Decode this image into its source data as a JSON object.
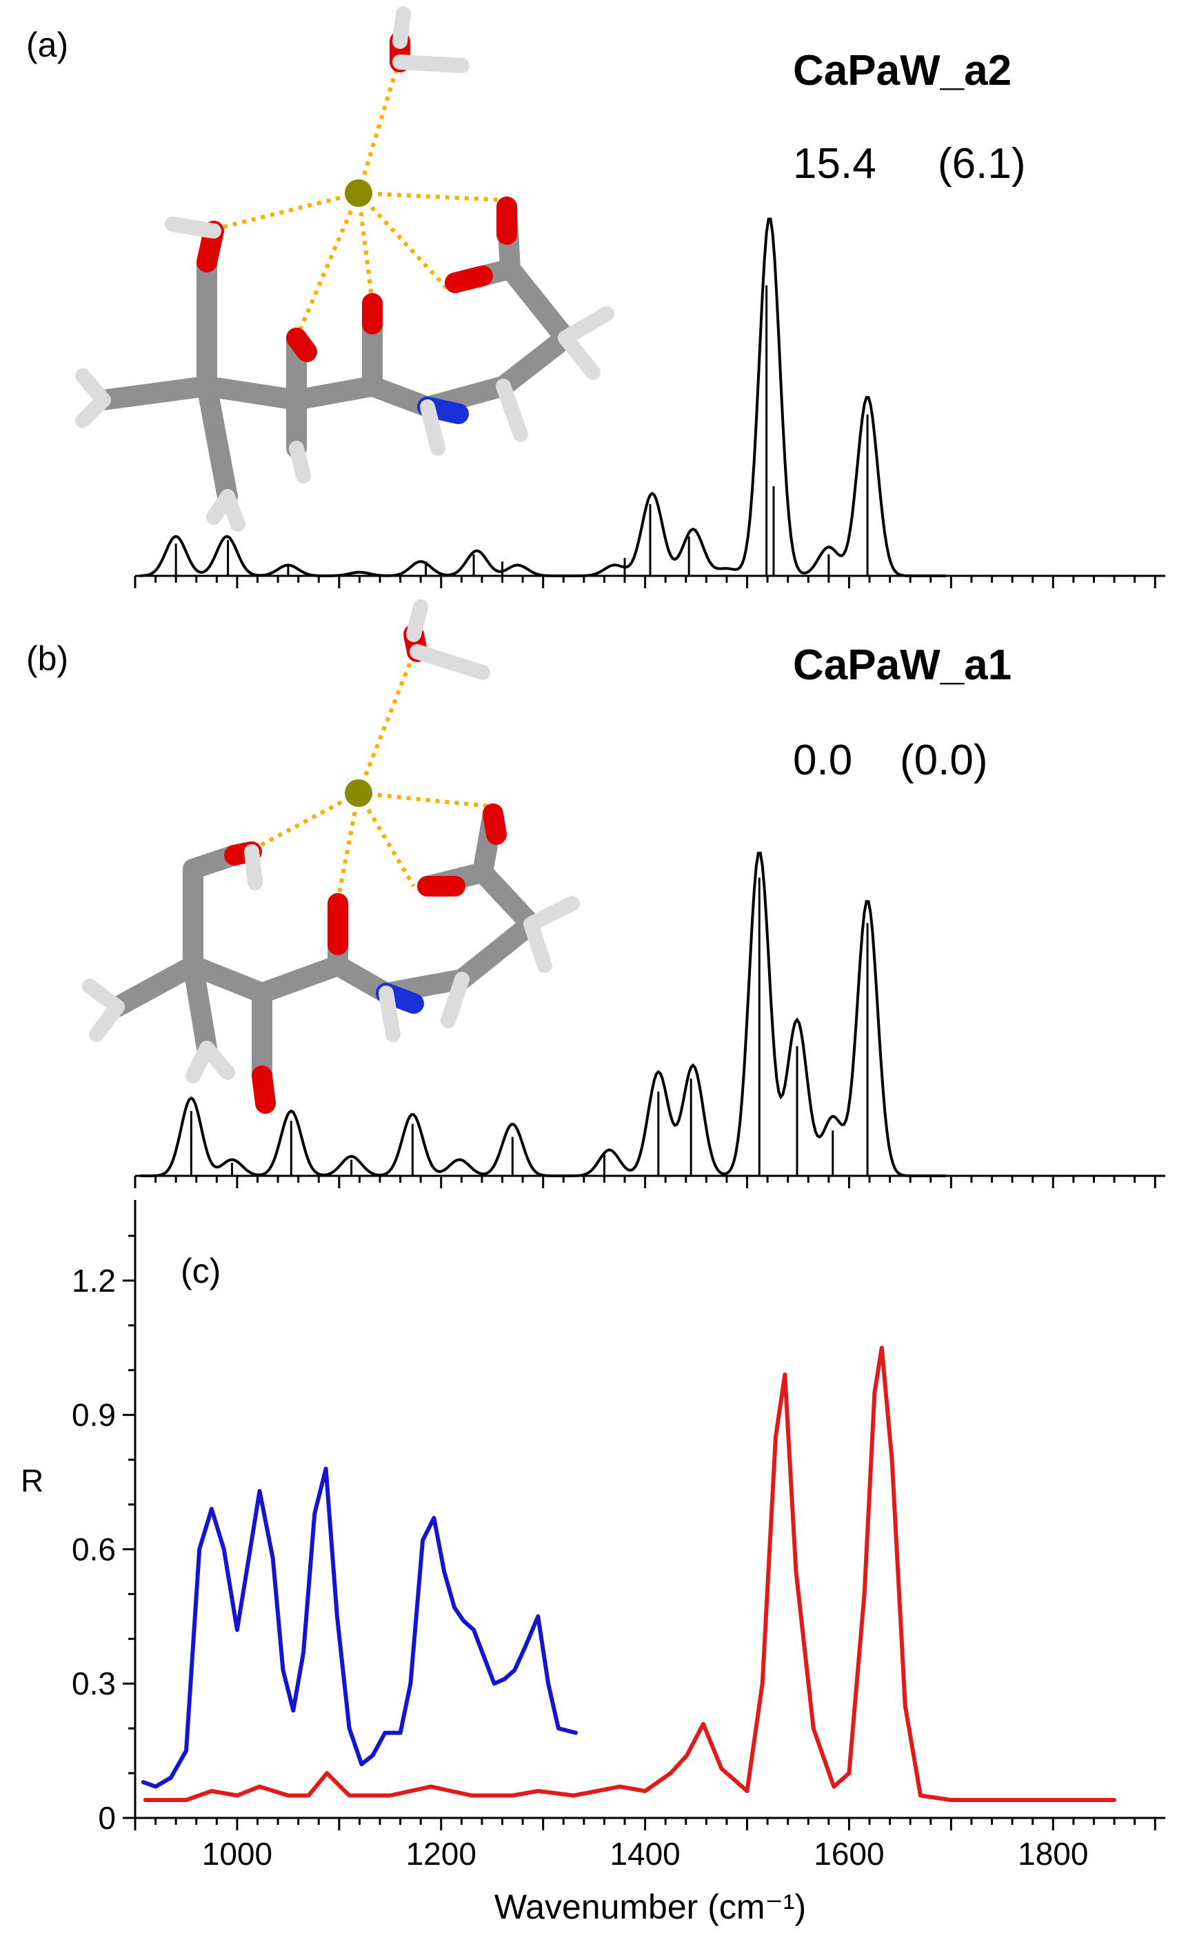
{
  "panels": {
    "a": {
      "label": "(a)",
      "title": "CaPaW_a2",
      "energy": "15.4",
      "energy_paren": "(6.1)"
    },
    "b": {
      "label": "(b)",
      "title": "CaPaW_a1",
      "energy": "0.0",
      "energy_paren": "(0.0)"
    },
    "c": {
      "label": "(c)"
    }
  },
  "axes": {
    "xlabel": "Wavenumber (cm⁻¹)",
    "ylabel": "R",
    "x_ticks": [
      1000,
      1200,
      1400,
      1600,
      1800
    ],
    "y_ticks": [
      "0",
      "0.3",
      "0.6",
      "0.9",
      "1.2"
    ],
    "y_tick_values": [
      0,
      0.3,
      0.6,
      0.9,
      1.2
    ],
    "xlim": [
      900,
      1910
    ],
    "ylim": [
      0,
      1.38
    ]
  },
  "colors": {
    "blue": "#1414d2",
    "red": "#e11a1a",
    "stick": "#000000",
    "bond": "#909090",
    "oxygen": "#e00000",
    "nitrogen": "#1a2fd6",
    "hydrogen": "#dcdcdc",
    "calcium": "#8a8a00",
    "coord": "#ffae00"
  },
  "chart_data": [
    {
      "type": "line",
      "panel": "a",
      "title": "CaPaW_a2",
      "x": [
        940,
        990,
        1050,
        1120,
        1180,
        1235,
        1275,
        1370,
        1407,
        1447,
        1480,
        1522,
        1580,
        1618
      ],
      "y": [
        0.11,
        0.11,
        0.03,
        0.01,
        0.04,
        0.07,
        0.03,
        0.03,
        0.23,
        0.13,
        0.02,
        1.0,
        0.08,
        0.5
      ],
      "sticks": [
        {
          "x": 940,
          "h": 0.09
        },
        {
          "x": 991,
          "h": 0.1
        },
        {
          "x": 1050,
          "h": 0.03
        },
        {
          "x": 1185,
          "h": 0.04
        },
        {
          "x": 1232,
          "h": 0.06
        },
        {
          "x": 1260,
          "h": 0.04
        },
        {
          "x": 1380,
          "h": 0.05
        },
        {
          "x": 1405,
          "h": 0.2
        },
        {
          "x": 1443,
          "h": 0.11
        },
        {
          "x": 1519,
          "h": 0.81
        },
        {
          "x": 1526,
          "h": 0.25
        },
        {
          "x": 1580,
          "h": 0.06
        },
        {
          "x": 1618,
          "h": 0.45
        }
      ]
    },
    {
      "type": "line",
      "panel": "b",
      "title": "CaPaW_a1",
      "x": [
        955,
        995,
        1053,
        1112,
        1172,
        1218,
        1270,
        1365,
        1413,
        1447,
        1512,
        1549,
        1584,
        1618
      ],
      "y": [
        0.24,
        0.05,
        0.2,
        0.06,
        0.19,
        0.05,
        0.16,
        0.08,
        0.32,
        0.34,
        1.0,
        0.48,
        0.18,
        0.85
      ],
      "sticks": [
        {
          "x": 955,
          "h": 0.2
        },
        {
          "x": 995,
          "h": 0.04
        },
        {
          "x": 1053,
          "h": 0.17
        },
        {
          "x": 1112,
          "h": 0.05
        },
        {
          "x": 1172,
          "h": 0.16
        },
        {
          "x": 1270,
          "h": 0.12
        },
        {
          "x": 1360,
          "h": 0.07
        },
        {
          "x": 1413,
          "h": 0.26
        },
        {
          "x": 1445,
          "h": 0.3
        },
        {
          "x": 1512,
          "h": 0.92
        },
        {
          "x": 1549,
          "h": 0.4
        },
        {
          "x": 1584,
          "h": 0.14
        },
        {
          "x": 1618,
          "h": 0.78
        }
      ]
    },
    {
      "type": "line",
      "panel": "c",
      "ylabel": "R",
      "xlabel": "Wavenumber (cm⁻¹)",
      "ylim": [
        0,
        1.38
      ],
      "series": [
        {
          "color": "#1414d2",
          "x": [
            908,
            920,
            935,
            950,
            963,
            975,
            987,
            1000,
            1010,
            1022,
            1035,
            1045,
            1055,
            1065,
            1076,
            1087,
            1098,
            1110,
            1122,
            1133,
            1145,
            1160,
            1170,
            1182,
            1193,
            1203,
            1213,
            1222,
            1232,
            1242,
            1252,
            1262,
            1272,
            1282,
            1295,
            1305,
            1315,
            1332
          ],
          "y": [
            0.08,
            0.07,
            0.09,
            0.15,
            0.6,
            0.69,
            0.6,
            0.42,
            0.56,
            0.73,
            0.58,
            0.33,
            0.24,
            0.37,
            0.68,
            0.78,
            0.45,
            0.2,
            0.12,
            0.14,
            0.19,
            0.19,
            0.3,
            0.62,
            0.67,
            0.55,
            0.47,
            0.44,
            0.42,
            0.36,
            0.3,
            0.31,
            0.33,
            0.38,
            0.45,
            0.3,
            0.2,
            0.19
          ]
        },
        {
          "color": "#e11a1a",
          "x": [
            910,
            950,
            975,
            1000,
            1022,
            1050,
            1070,
            1088,
            1110,
            1150,
            1190,
            1230,
            1270,
            1295,
            1330,
            1375,
            1400,
            1425,
            1441,
            1457,
            1475,
            1500,
            1515,
            1528,
            1537,
            1548,
            1565,
            1585,
            1600,
            1615,
            1625,
            1632,
            1642,
            1655,
            1670,
            1700,
            1750,
            1800,
            1860
          ],
          "y": [
            0.04,
            0.04,
            0.06,
            0.05,
            0.07,
            0.05,
            0.05,
            0.1,
            0.05,
            0.05,
            0.07,
            0.05,
            0.05,
            0.06,
            0.05,
            0.07,
            0.06,
            0.1,
            0.14,
            0.21,
            0.11,
            0.06,
            0.3,
            0.85,
            0.99,
            0.55,
            0.2,
            0.07,
            0.1,
            0.5,
            0.95,
            1.05,
            0.8,
            0.25,
            0.05,
            0.04,
            0.04,
            0.04,
            0.04
          ]
        }
      ]
    }
  ]
}
